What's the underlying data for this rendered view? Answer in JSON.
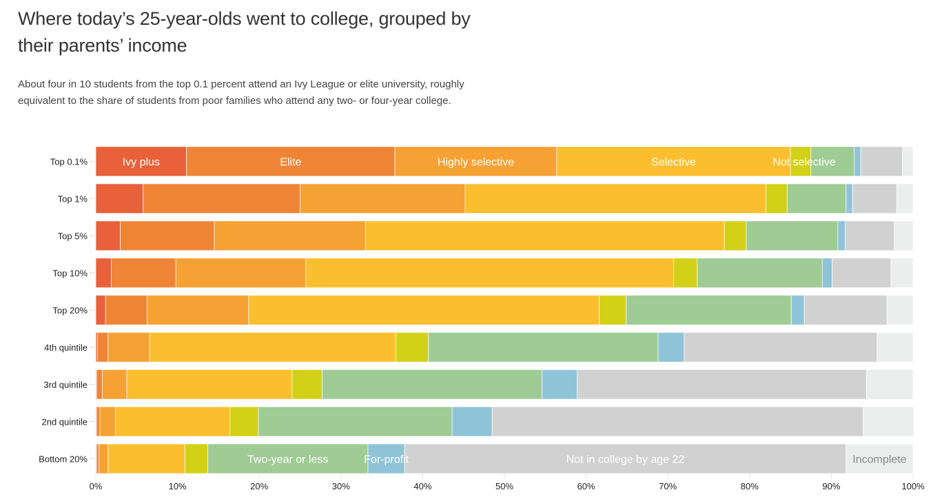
{
  "header": {
    "title": "Where today’s 25-year-olds went to college, grouped by their parents’ income",
    "subtitle": "About four in 10 students from the top 0.1 percent attend an Ivy League or elite university, roughly equivalent to the share of students from poor families who attend any two- or four-year college."
  },
  "chart_data": {
    "type": "bar",
    "orientation": "horizontal",
    "stacked": true,
    "title": "Where today’s 25-year-olds went to college, grouped by their parents’ income",
    "xlabel": "",
    "ylabel": "",
    "xlim": [
      0,
      100
    ],
    "x_ticks": [
      "0%",
      "10%",
      "20%",
      "30%",
      "40%",
      "50%",
      "60%",
      "70%",
      "80%",
      "90%",
      "100%"
    ],
    "grid": false,
    "categories": [
      "Top 0.1%",
      "Top 1%",
      "Top 5%",
      "Top 10%",
      "Top 20%",
      "4th quintile",
      "3rd quintile",
      "2nd quintile",
      "Bottom 20%"
    ],
    "series": [
      {
        "name": "Ivy plus",
        "color": "#e8613a",
        "values": [
          11.1,
          5.8,
          3.0,
          1.9,
          1.2,
          0.2,
          0.1,
          0.1,
          0.1
        ]
      },
      {
        "name": "Elite",
        "color": "#ee8536",
        "values": [
          25.5,
          19.2,
          11.5,
          7.9,
          5.1,
          1.3,
          0.7,
          0.4,
          0.3
        ]
      },
      {
        "name": "Highly selective",
        "color": "#f5a133",
        "values": [
          19.8,
          20.2,
          18.5,
          15.9,
          12.4,
          5.1,
          3.0,
          1.9,
          1.1
        ]
      },
      {
        "name": "Selective",
        "color": "#fbbe2e",
        "values": [
          28.6,
          36.8,
          43.9,
          45.0,
          42.9,
          30.1,
          20.2,
          14.0,
          9.4
        ]
      },
      {
        "name": "Not selective",
        "color": "#d2d117",
        "values": [
          2.5,
          2.6,
          2.7,
          2.9,
          3.3,
          4.0,
          3.7,
          3.5,
          2.8
        ]
      },
      {
        "name": "Two-year or less",
        "color": "#9fcb94",
        "values": [
          5.3,
          7.2,
          11.2,
          15.3,
          20.2,
          28.1,
          26.9,
          23.7,
          19.6
        ]
      },
      {
        "name": "For-profit",
        "color": "#8fc4d8",
        "values": [
          0.8,
          0.8,
          0.9,
          1.2,
          1.6,
          3.2,
          4.3,
          4.9,
          4.5
        ]
      },
      {
        "name": "Not in college by age 22",
        "color": "#d1d1d1",
        "values": [
          5.1,
          5.4,
          6.0,
          7.2,
          10.1,
          23.6,
          35.4,
          45.4,
          54.0
        ]
      },
      {
        "name": "Incomplete",
        "color": "#eceeee",
        "values": [
          1.3,
          2.0,
          2.3,
          2.7,
          3.2,
          4.4,
          5.7,
          6.2,
          8.2
        ]
      }
    ],
    "annotations": [
      {
        "text": "Ivy plus",
        "row": "Top 0.1%",
        "series": "Ivy plus"
      },
      {
        "text": "Elite",
        "row": "Top 0.1%",
        "series": "Elite"
      },
      {
        "text": "Highly selective",
        "row": "Top 0.1%",
        "series": "Highly selective"
      },
      {
        "text": "Selective",
        "row": "Top 0.1%",
        "series": "Selective"
      },
      {
        "text": "Not selective",
        "row": "Top 0.1%",
        "series": "Not selective"
      },
      {
        "text": "Two-year or less",
        "row": "Bottom 20%",
        "series": "Two-year or less"
      },
      {
        "text": "For-profit",
        "row": "Bottom 20%",
        "series": "For-profit"
      },
      {
        "text": "Not in college by age 22",
        "row": "Bottom 20%",
        "series": "Not in college by age 22"
      },
      {
        "text": "Incomplete",
        "row": "Bottom 20%",
        "series": "Incomplete"
      }
    ]
  }
}
